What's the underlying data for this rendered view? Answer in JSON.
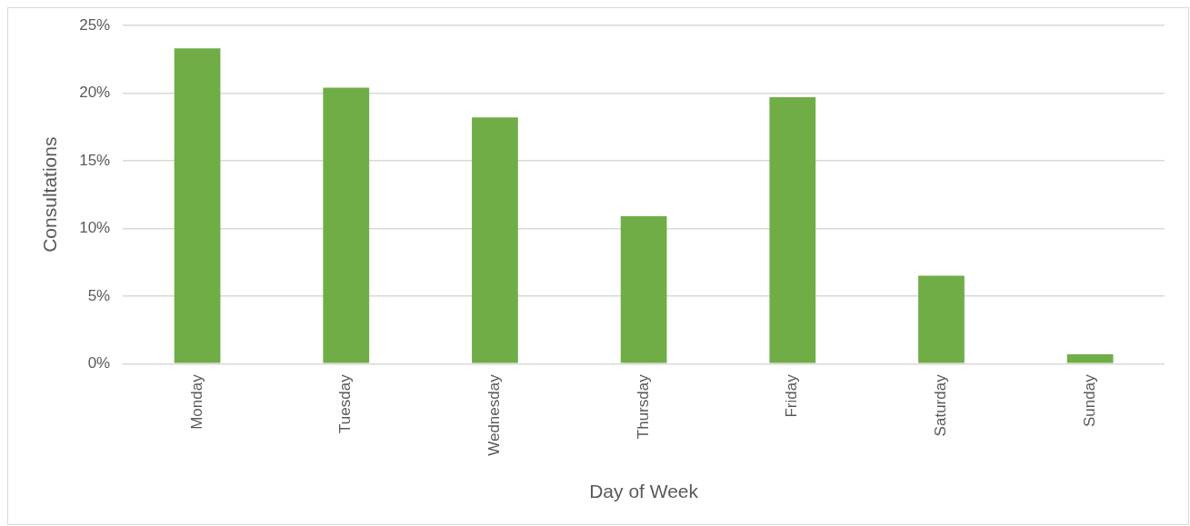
{
  "chart_data": {
    "type": "bar",
    "xlabel": "Day of Week",
    "ylabel": "Consultations",
    "categories": [
      "Monday",
      "Tuesday",
      "Wednesday",
      "Thursday",
      "Friday",
      "Saturday",
      "Sunday"
    ],
    "values": [
      23.3,
      20.4,
      18.2,
      10.9,
      19.7,
      6.5,
      0.7
    ],
    "color": "#70ad47",
    "ylim": [
      0,
      25
    ],
    "yticks": [
      {
        "value": 0,
        "label": "0%"
      },
      {
        "value": 5,
        "label": "5%"
      },
      {
        "value": 10,
        "label": "10%"
      },
      {
        "value": 15,
        "label": "15%"
      },
      {
        "value": 20,
        "label": "20%"
      },
      {
        "value": 25,
        "label": "25%"
      }
    ],
    "grid": "y"
  }
}
